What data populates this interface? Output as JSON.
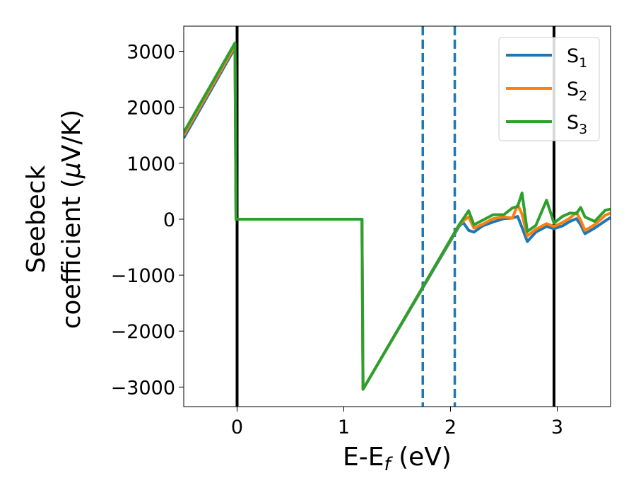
{
  "chart_data": {
    "type": "line",
    "xlabel": "E-E",
    "xlabel_sub": "f",
    "xlabel_unit": " (eV)",
    "ylabel_line1": "Seebeck",
    "ylabel_line2": "coefficient  (",
    "ylabel_mu": "μ",
    "ylabel_unit": "V/K)",
    "xlim": [
      -0.5,
      3.5
    ],
    "ylim": [
      -3350,
      3450
    ],
    "x_ticks": [
      0,
      1,
      2,
      3
    ],
    "x_tick_labels": [
      "0",
      "1",
      "2",
      "3"
    ],
    "y_ticks": [
      3000,
      2000,
      1000,
      0,
      -1000,
      -2000,
      -3000
    ],
    "y_tick_labels": [
      "3000",
      "2000",
      "1000",
      "0",
      "−1000",
      "−2000",
      "−3000"
    ],
    "grid": false,
    "legend_position": "top-right",
    "vlines": [
      {
        "x": 0,
        "style": "solid",
        "color": "#000000"
      },
      {
        "x": 2.97,
        "style": "solid",
        "color": "#000000"
      },
      {
        "x": 1.74,
        "style": "dashed",
        "color": "#1f77b4"
      },
      {
        "x": 2.04,
        "style": "dashed",
        "color": "#1f77b4"
      }
    ],
    "series": [
      {
        "name": "S",
        "sub": "1",
        "color": "#1f77b4",
        "x": [
          -0.5,
          -0.02,
          -0.01,
          1.17,
          1.18,
          2.08,
          2.12,
          2.17,
          2.22,
          2.3,
          2.4,
          2.5,
          2.58,
          2.63,
          2.67,
          2.72,
          2.8,
          2.9,
          2.97,
          3.05,
          3.12,
          3.18,
          3.22,
          3.26,
          3.35,
          3.45,
          3.5
        ],
        "y": [
          1450,
          3060,
          0,
          0,
          -3040,
          -130,
          -60,
          -200,
          -230,
          -120,
          -50,
          10,
          20,
          50,
          -150,
          -400,
          -230,
          -130,
          -170,
          -120,
          -40,
          10,
          -100,
          -260,
          -160,
          -30,
          30
        ]
      },
      {
        "name": "S",
        "sub": "2",
        "color": "#ff7f0e",
        "x": [
          -0.5,
          -0.02,
          -0.01,
          1.17,
          1.18,
          2.08,
          2.12,
          2.17,
          2.22,
          2.3,
          2.4,
          2.5,
          2.58,
          2.63,
          2.67,
          2.72,
          2.8,
          2.9,
          2.97,
          3.05,
          3.12,
          3.18,
          3.22,
          3.26,
          3.35,
          3.45,
          3.5
        ],
        "y": [
          1500,
          3100,
          0,
          0,
          -3040,
          -110,
          -30,
          40,
          -160,
          -90,
          10,
          40,
          20,
          260,
          90,
          -300,
          -180,
          -80,
          -130,
          -60,
          20,
          120,
          -20,
          -200,
          -100,
          70,
          110
        ]
      },
      {
        "name": "S",
        "sub": "3",
        "color": "#2ca02c",
        "x": [
          -0.5,
          -0.02,
          -0.01,
          1.17,
          1.18,
          2.08,
          2.12,
          2.17,
          2.22,
          2.3,
          2.4,
          2.5,
          2.58,
          2.63,
          2.67,
          2.72,
          2.8,
          2.9,
          2.97,
          3.05,
          3.12,
          3.18,
          3.22,
          3.26,
          3.35,
          3.45,
          3.5
        ],
        "y": [
          1550,
          3150,
          0,
          0,
          -3040,
          -100,
          10,
          150,
          -100,
          -20,
          80,
          80,
          200,
          230,
          470,
          -220,
          -110,
          340,
          -70,
          50,
          110,
          100,
          210,
          40,
          -40,
          160,
          180
        ]
      }
    ]
  }
}
